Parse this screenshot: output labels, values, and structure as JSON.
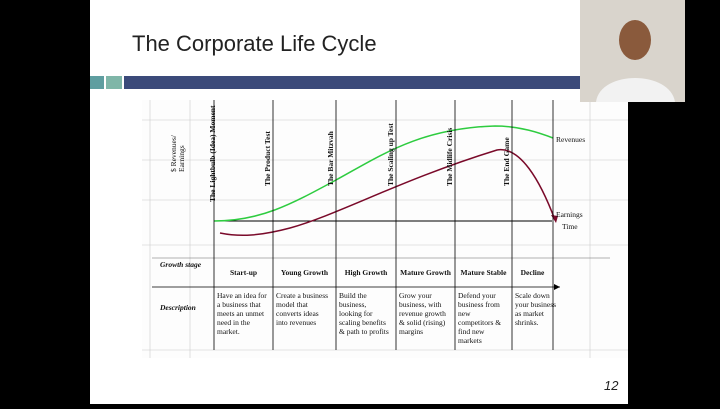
{
  "title": "The Corporate Life Cycle",
  "page_number": "12",
  "diagram": {
    "y_axis_label": [
      "$ Revenues/",
      "Earnings"
    ],
    "milestones": [
      "The Lightbulb (Idea) Moment",
      "The Product Test",
      "The Bar Mitzvah",
      "The Scaling up Test",
      "The Midlife Crisis",
      "The End Game"
    ],
    "curve_labels": {
      "revenues": "Revenues",
      "earnings": "Earnings",
      "time": "Time"
    },
    "row_labels": {
      "growth_stage": "Growth stage",
      "description": "Description"
    },
    "stages": [
      {
        "name": "Start-up",
        "description": [
          "Have an idea for",
          "a business that",
          "meets an unmet",
          "need in the",
          "market."
        ]
      },
      {
        "name": "Young Growth",
        "description": [
          "Create a business",
          "model that",
          "converts ideas",
          "into revenues"
        ]
      },
      {
        "name": "High Growth",
        "description": [
          "Build the",
          "business,",
          "looking for",
          "scaling benefits",
          "& path to profits"
        ]
      },
      {
        "name": "Mature Growth",
        "description": [
          "Grow your",
          "business, with",
          "revenue growth",
          "& solid (rising)",
          "margins"
        ]
      },
      {
        "name": "Mature Stable",
        "description": [
          "Defend your",
          "business from",
          "new",
          "competitors &",
          "find new",
          "markets"
        ]
      },
      {
        "name": "Decline",
        "description": [
          "Scale down",
          "your business",
          "as market",
          "shrinks."
        ]
      }
    ]
  }
}
